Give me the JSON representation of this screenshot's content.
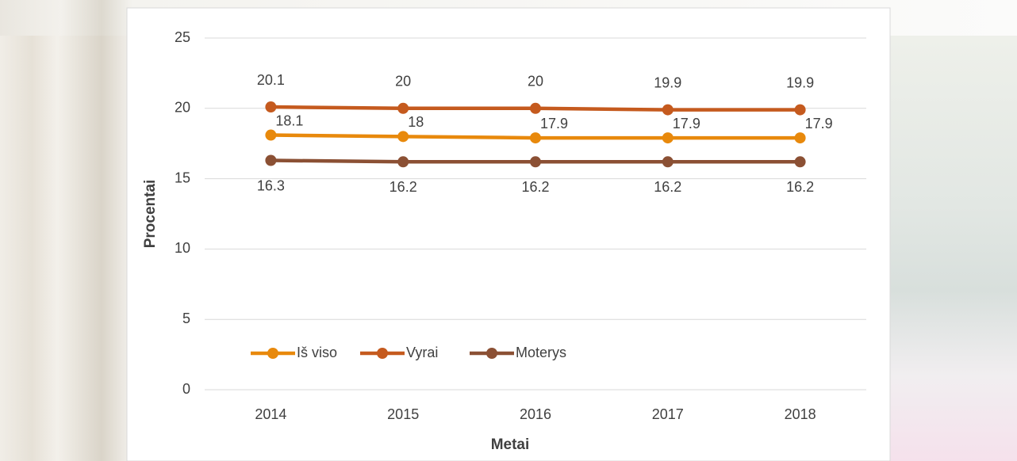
{
  "chart_data": {
    "type": "line",
    "x_label": "Metai",
    "y_label": "Procentai",
    "categories": [
      "2014",
      "2015",
      "2016",
      "2017",
      "2018"
    ],
    "series": [
      {
        "name": "Iš viso",
        "color": "#e8890c",
        "values": [
          18.1,
          18,
          17.9,
          17.9,
          17.9
        ]
      },
      {
        "name": "Vyrai",
        "color": "#c55a1e",
        "values": [
          20.1,
          20,
          20,
          19.9,
          19.9
        ]
      },
      {
        "name": "Moterys",
        "color": "#8b5034",
        "values": [
          16.3,
          16.2,
          16.2,
          16.2,
          16.2
        ]
      }
    ],
    "ylim": [
      0,
      25
    ],
    "yticks": [
      0,
      5,
      10,
      15,
      20,
      25
    ],
    "grid": true,
    "legend": "bottom-left"
  }
}
